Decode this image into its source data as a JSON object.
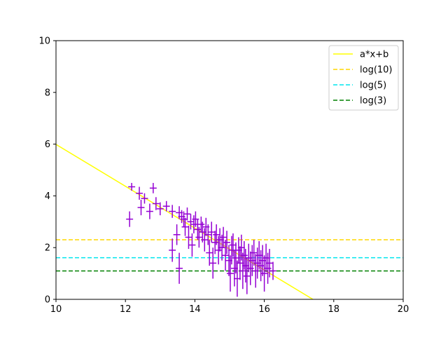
{
  "chart_data": {
    "type": "scatter",
    "xlim": [
      10,
      20
    ],
    "ylim": [
      0,
      10
    ],
    "x_ticks": [
      "10",
      "12",
      "14",
      "16",
      "18",
      "20"
    ],
    "y_ticks": [
      "0",
      "2",
      "4",
      "6",
      "8",
      "10"
    ],
    "grid": false,
    "legend_position": "top-right",
    "lines": [
      {
        "name": "a*x+b",
        "kind": "fit",
        "color": "#ffff00",
        "style": "solid",
        "x": [
          10,
          17.4
        ],
        "y": [
          5.99,
          0.0
        ]
      },
      {
        "name": "log(10)",
        "kind": "hline",
        "color": "#ffd700",
        "style": "dashed",
        "y": 2.303
      },
      {
        "name": "log(5)",
        "kind": "hline",
        "color": "#00e5ee",
        "style": "dashed",
        "y": 1.609
      },
      {
        "name": "log(3)",
        "kind": "hline",
        "color": "#008000",
        "style": "dashed",
        "y": 1.099
      }
    ],
    "series": [
      {
        "color": "#9400d3",
        "points": [
          [
            12.12,
            3.1,
            0.3,
            0.1
          ],
          [
            12.18,
            4.35,
            0.15,
            0.1
          ],
          [
            12.4,
            4.1,
            0.25,
            0.1
          ],
          [
            12.45,
            3.55,
            0.3,
            0.1
          ],
          [
            12.55,
            3.9,
            0.2,
            0.1
          ],
          [
            12.7,
            3.4,
            0.3,
            0.1
          ],
          [
            12.8,
            4.3,
            0.2,
            0.1
          ],
          [
            12.88,
            3.7,
            0.25,
            0.1
          ],
          [
            13.0,
            3.5,
            0.25,
            0.1
          ],
          [
            13.18,
            3.6,
            0.2,
            0.1
          ],
          [
            13.35,
            3.4,
            0.25,
            0.1
          ],
          [
            13.35,
            1.9,
            0.45,
            0.1
          ],
          [
            13.48,
            2.5,
            0.4,
            0.1
          ],
          [
            13.55,
            1.2,
            0.6,
            0.1
          ],
          [
            13.55,
            3.35,
            0.25,
            0.1
          ],
          [
            13.62,
            3.2,
            0.25,
            0.1
          ],
          [
            13.68,
            3.1,
            0.3,
            0.1
          ],
          [
            13.72,
            2.8,
            0.35,
            0.1
          ],
          [
            13.78,
            3.3,
            0.25,
            0.1
          ],
          [
            13.82,
            2.4,
            0.45,
            0.1
          ],
          [
            13.88,
            3.0,
            0.3,
            0.1
          ],
          [
            13.92,
            2.1,
            0.45,
            0.1
          ],
          [
            13.97,
            2.9,
            0.35,
            0.1
          ],
          [
            14.02,
            3.1,
            0.3,
            0.1
          ],
          [
            14.08,
            2.7,
            0.4,
            0.1
          ],
          [
            14.12,
            2.4,
            0.4,
            0.1
          ],
          [
            14.18,
            2.9,
            0.3,
            0.1
          ],
          [
            14.22,
            2.6,
            0.4,
            0.1
          ],
          [
            14.28,
            2.3,
            0.45,
            0.1
          ],
          [
            14.32,
            2.8,
            0.35,
            0.1
          ],
          [
            14.38,
            2.5,
            0.4,
            0.1
          ],
          [
            14.42,
            1.8,
            0.5,
            0.1
          ],
          [
            14.48,
            2.6,
            0.4,
            0.1
          ],
          [
            14.52,
            1.4,
            0.6,
            0.1
          ],
          [
            14.58,
            2.2,
            0.45,
            0.1
          ],
          [
            14.62,
            2.5,
            0.4,
            0.1
          ],
          [
            14.68,
            1.9,
            0.55,
            0.1
          ],
          [
            14.72,
            2.3,
            0.45,
            0.1
          ],
          [
            14.78,
            2.0,
            0.5,
            0.1
          ],
          [
            14.82,
            2.4,
            0.4,
            0.1
          ],
          [
            14.88,
            1.7,
            0.6,
            0.1
          ],
          [
            14.92,
            2.2,
            0.45,
            0.1
          ],
          [
            14.98,
            1.5,
            0.6,
            0.1
          ],
          [
            15.02,
            1.0,
            0.7,
            0.1
          ],
          [
            15.06,
            1.9,
            0.55,
            0.1
          ],
          [
            15.1,
            2.1,
            0.45,
            0.1
          ],
          [
            15.14,
            1.2,
            0.7,
            0.1
          ],
          [
            15.18,
            1.6,
            0.6,
            0.1
          ],
          [
            15.22,
            0.8,
            0.7,
            0.1
          ],
          [
            15.26,
            1.9,
            0.5,
            0.1
          ],
          [
            15.3,
            1.4,
            0.65,
            0.1
          ],
          [
            15.34,
            2.0,
            0.5,
            0.1
          ],
          [
            15.38,
            1.1,
            0.7,
            0.1
          ],
          [
            15.42,
            1.7,
            0.55,
            0.1
          ],
          [
            15.46,
            1.3,
            0.65,
            0.1
          ],
          [
            15.5,
            0.9,
            0.7,
            0.1
          ],
          [
            15.55,
            1.6,
            0.55,
            0.1
          ],
          [
            15.6,
            1.2,
            0.65,
            0.1
          ],
          [
            15.65,
            1.5,
            0.6,
            0.1
          ],
          [
            15.7,
            1.8,
            0.5,
            0.1
          ],
          [
            15.75,
            1.1,
            0.65,
            0.1
          ],
          [
            15.8,
            1.4,
            0.6,
            0.1
          ],
          [
            15.85,
            1.7,
            0.55,
            0.1
          ],
          [
            15.9,
            1.3,
            0.6,
            0.1
          ],
          [
            15.95,
            1.5,
            0.6,
            0.1
          ],
          [
            16.0,
            1.0,
            0.7,
            0.1
          ],
          [
            16.05,
            1.6,
            0.55,
            0.1
          ],
          [
            16.1,
            1.2,
            0.6,
            0.1
          ],
          [
            16.15,
            1.4,
            0.55,
            0.1
          ],
          [
            16.25,
            1.1,
            0.35,
            0.1
          ]
        ]
      }
    ]
  }
}
